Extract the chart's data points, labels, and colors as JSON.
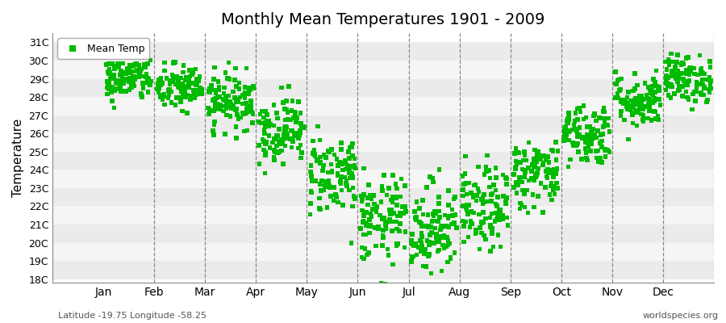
{
  "title": "Monthly Mean Temperatures 1901 - 2009",
  "ylabel": "Temperature",
  "xlabel_labels": [
    "Jan",
    "Feb",
    "Mar",
    "Apr",
    "May",
    "Jun",
    "Jul",
    "Aug",
    "Sep",
    "Oct",
    "Nov",
    "Dec"
  ],
  "bottom_left": "Latitude -19.75 Longitude -58.25",
  "bottom_right": "worldspecies.org",
  "ytick_labels": [
    "18C",
    "19C",
    "20C",
    "21C",
    "22C",
    "23C",
    "24C",
    "25C",
    "26C",
    "27C",
    "28C",
    "29C",
    "30C",
    "31C"
  ],
  "ytick_values": [
    18,
    19,
    20,
    21,
    22,
    23,
    24,
    25,
    26,
    27,
    28,
    29,
    30,
    31
  ],
  "ylim": [
    17.8,
    31.5
  ],
  "marker_color": "#00BB00",
  "marker": "s",
  "marker_size": 4,
  "legend_label": "Mean Temp",
  "background_color": "#ffffff",
  "band_color_odd": "#ebebeb",
  "band_color_even": "#f5f5f5",
  "monthly_means": [
    29.0,
    28.5,
    27.8,
    26.2,
    23.8,
    21.2,
    20.8,
    21.8,
    23.8,
    26.0,
    27.8,
    29.0
  ],
  "monthly_stds": [
    0.6,
    0.65,
    0.75,
    0.9,
    1.1,
    1.2,
    1.3,
    1.15,
    0.95,
    0.85,
    0.75,
    0.65
  ],
  "n_years": 109,
  "seed": 42,
  "title_fontsize": 14,
  "axis_fontsize": 10,
  "label_fontsize": 9
}
